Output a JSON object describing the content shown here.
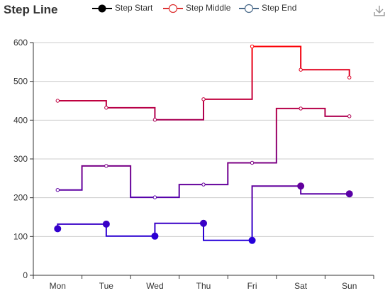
{
  "chart_data": {
    "type": "line",
    "step": true,
    "title": "Step Line",
    "categories": [
      "Mon",
      "Tue",
      "Wed",
      "Thu",
      "Fri",
      "Sat",
      "Sun"
    ],
    "ylim": [
      0,
      600
    ],
    "yticks": [
      0,
      100,
      200,
      300,
      400,
      500,
      600
    ],
    "grid": true,
    "legend_position": "top-center",
    "series": [
      {
        "name": "Step Start",
        "step": "start",
        "values": [
          120,
          132,
          101,
          134,
          90,
          230,
          210
        ]
      },
      {
        "name": "Step Middle",
        "step": "middle",
        "values": [
          220,
          282,
          201,
          234,
          290,
          430,
          410
        ]
      },
      {
        "name": "Step End",
        "step": "end",
        "values": [
          450,
          432,
          401,
          454,
          590,
          530,
          510
        ]
      }
    ]
  },
  "legend": {
    "items": [
      {
        "label": "Step Start",
        "color": "#000000"
      },
      {
        "label": "Step Middle",
        "color": "#dd3333"
      },
      {
        "label": "Step End",
        "color": "#4a6a8a"
      }
    ]
  },
  "toolbox": {
    "icon": "download-icon"
  },
  "colors": {
    "gradient_top": "#ff0000",
    "gradient_bottom": "#0000ff",
    "axis": "#333333",
    "grid": "#cccccc"
  }
}
